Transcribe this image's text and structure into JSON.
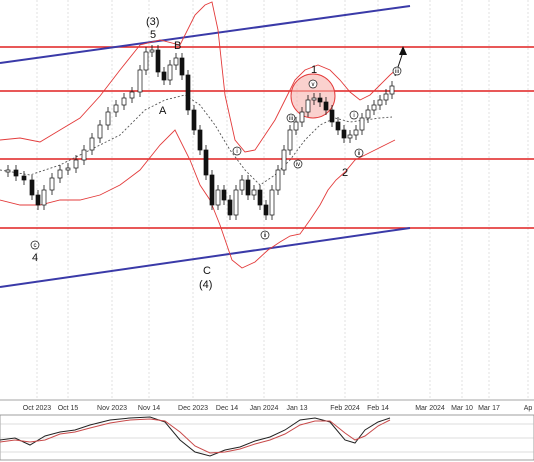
{
  "chart_data": {
    "type": "candlestick",
    "title": "",
    "xlabel": "",
    "ylabel": "",
    "x_ticks": [
      "Oct 2023",
      "Oct 15",
      "Nov 2023",
      "Nov 14",
      "Dec 2023",
      "Dec 14",
      "Jan 2024",
      "Jan 13",
      "Feb 2024",
      "Feb 14",
      "Mar 2024",
      "Mar 10",
      "Mar 17",
      "Ap"
    ],
    "grid": true,
    "indicators": [
      "Bollinger Bands",
      "moving average",
      "oscillator (lower panel)"
    ],
    "elliott_wave_labels": [
      "(3)",
      "5",
      "B",
      "A",
      "C",
      "(4)",
      "4",
      "1",
      "2",
      "c",
      "i",
      "ii",
      "iii",
      "iv",
      "v"
    ],
    "annotations": [
      "upward arrow at end of price",
      "highlighted circle around wave 1 top"
    ],
    "channel_lines": "two parallel rising blue trend lines",
    "horizontal_levels": "five red horizontal support/resistance lines"
  },
  "colors": {
    "bull_candle": "#ffffff",
    "bear_candle": "#111111",
    "bollinger": "#e33b3b",
    "moving_average": "#444444",
    "channel": "#3a3aa8",
    "level": "#e02020",
    "highlight_fill": "#f7b2ad"
  }
}
